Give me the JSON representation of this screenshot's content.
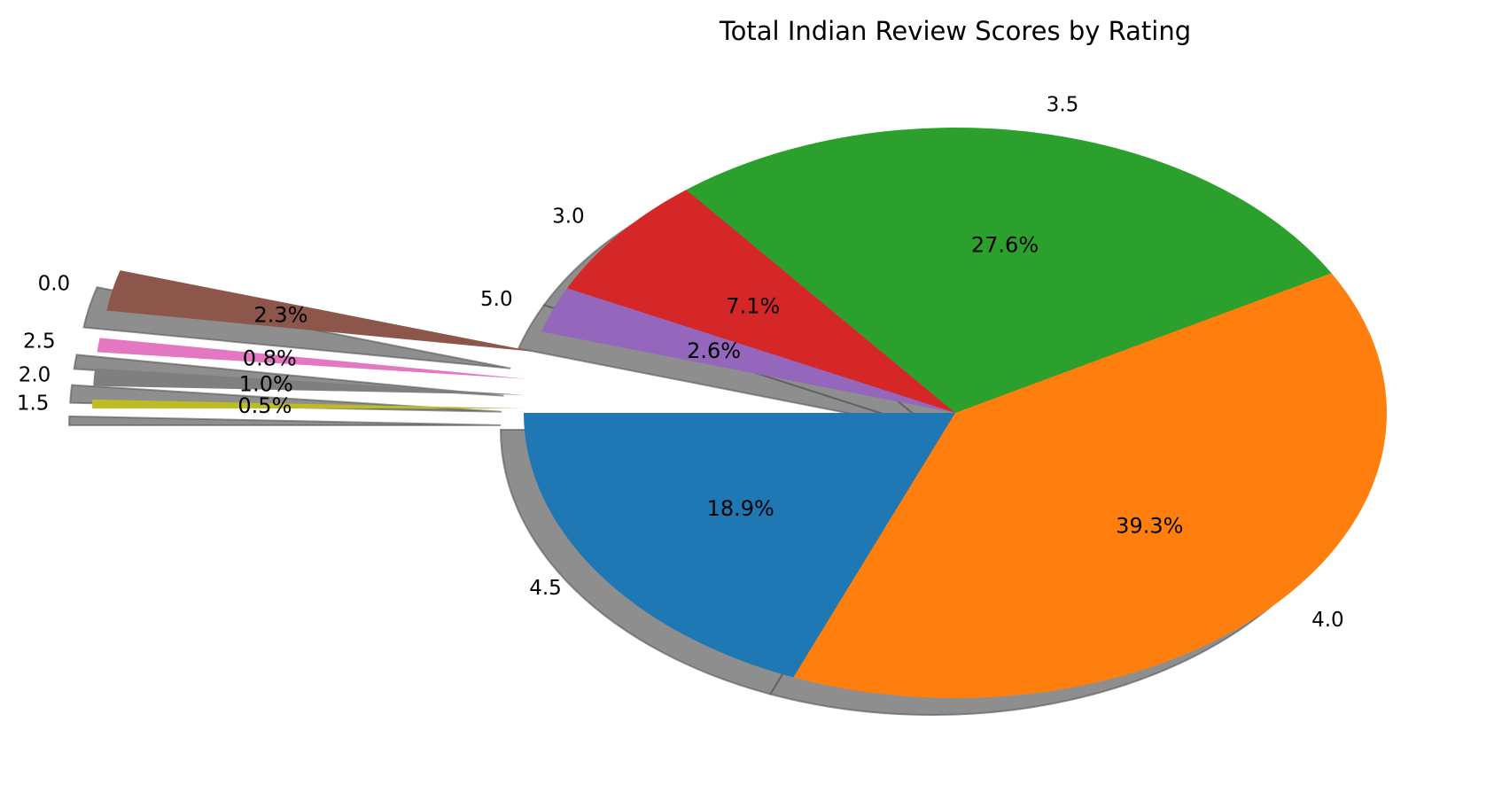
{
  "chart_data": {
    "type": "pie",
    "title": "Total Indian Review Scores by Rating",
    "slices": [
      {
        "label": "4.5",
        "percent": 18.9,
        "pct_label": "18.9%",
        "color": "#1f77b4",
        "exploded": false
      },
      {
        "label": "4.0",
        "percent": 39.3,
        "pct_label": "39.3%",
        "color": "#ff7f0e",
        "exploded": false
      },
      {
        "label": "3.5",
        "percent": 27.6,
        "pct_label": "27.6%",
        "color": "#2ca02c",
        "exploded": false
      },
      {
        "label": "3.0",
        "percent": 7.1,
        "pct_label": "7.1%",
        "color": "#d62728",
        "exploded": false
      },
      {
        "label": "5.0",
        "percent": 2.6,
        "pct_label": "2.6%",
        "color": "#9467bd",
        "exploded": false
      },
      {
        "label": "0.0",
        "percent": 2.3,
        "pct_label": "2.3%",
        "color": "#8c564b",
        "exploded": true
      },
      {
        "label": "2.5",
        "percent": 0.8,
        "pct_label": "0.8%",
        "color": "#e377c2",
        "exploded": true
      },
      {
        "label": "2.0",
        "percent": 1.0,
        "pct_label": "1.0%",
        "color": "#7f7f7f",
        "exploded": true
      },
      {
        "label": "1.5",
        "percent": 0.5,
        "pct_label": "0.5%",
        "color": "#bcbd22",
        "exploded": true
      }
    ],
    "start_angle_deg": 180,
    "direction": "counterclockwise",
    "shadow": true,
    "legend": "none"
  }
}
